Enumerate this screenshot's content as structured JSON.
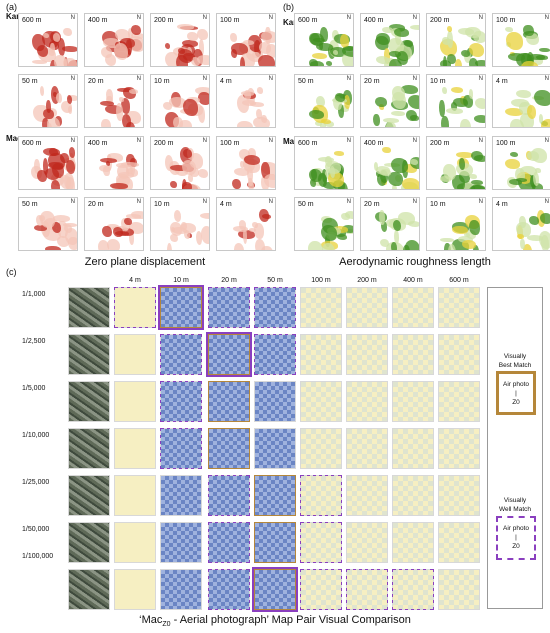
{
  "panels": {
    "a": {
      "letter": "(a)",
      "caption": "Zero plane displacement"
    },
    "b": {
      "letter": "(b)",
      "caption": "Aerodynamic roughness length"
    },
    "c": {
      "letter": "(c)"
    }
  },
  "cities": [
    "Kan",
    "Mac"
  ],
  "map_resolutions": [
    "600 m",
    "400 m",
    "200 m",
    "100 m",
    "50 m",
    "20 m",
    "10 m",
    "4 m"
  ],
  "north_symbol": "N",
  "colors": {
    "zpd_dark": "#c0281e",
    "zpd_light": "#f4c6b8",
    "rough_dark": "#3f8f1f",
    "rough_light": "#cfe3a8",
    "rough_yellow": "#e8d23a",
    "best_frame": "#b5873a",
    "well_frame": "#8a3fbf",
    "cmp_blue": "#6b85c4",
    "cmp_cream": "#f6efc2",
    "cmp_grid": "#dfe4cf"
  },
  "comparison": {
    "columns": [
      "",
      "4 m",
      "10 m",
      "20 m",
      "50 m",
      "100 m",
      "200 m",
      "400 m",
      "600 m"
    ],
    "scales": [
      "1/1,000",
      "1/2,500",
      "1/5,000",
      "1/10,000",
      "1/25,000",
      "1/50,000",
      "1/100,000"
    ]
  },
  "legend": {
    "best_title": "Visually\nBest Match",
    "best_sample": "Air photo\n|\nZ0",
    "well_title": "Visually\nWell Match",
    "well_sample": "Air photo\n|\nZ0"
  },
  "bottom_caption": {
    "prefix": "‘Mac",
    "subscript": "Z0",
    "suffix": " - Aerial photograph’ Map Pair Visual Comparison"
  }
}
